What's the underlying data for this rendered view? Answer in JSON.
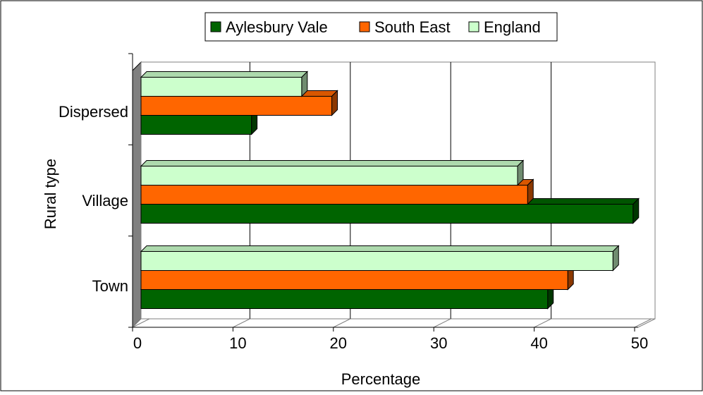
{
  "chart_data": {
    "type": "bar",
    "orientation": "horizontal",
    "three_d": true,
    "title": "",
    "xlabel": "Percentage",
    "ylabel": "Rural type",
    "categories": [
      "Town",
      "Village",
      "Dispersed"
    ],
    "xlim": [
      0,
      50
    ],
    "x_ticks": [
      "0",
      "10",
      "20",
      "30",
      "40",
      "50"
    ],
    "grid": true,
    "legend_position": "top",
    "series": [
      {
        "name": "Aylesbury Vale",
        "color": "#006400",
        "values": [
          40.5,
          49,
          11
        ]
      },
      {
        "name": "South East",
        "color": "#ff6600",
        "values": [
          42.5,
          38.5,
          19
        ]
      },
      {
        "name": "England",
        "color": "#ccffcc",
        "values": [
          47,
          37.5,
          16
        ]
      }
    ]
  }
}
